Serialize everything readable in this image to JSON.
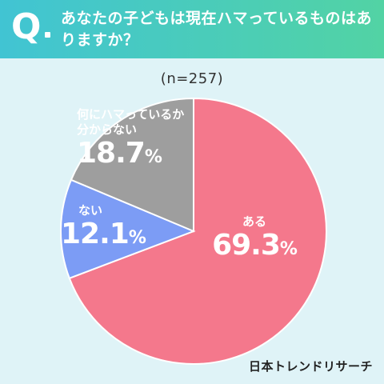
{
  "header": {
    "q_mark": "Q",
    "question": "あなたの子どもは現在ハマっているものはありますか？"
  },
  "sample_label": "(n=257)",
  "chart_data": {
    "type": "pie",
    "slices": [
      {
        "label": "ある",
        "value": 69.3,
        "value_text": "69.3",
        "color": "#f4788c"
      },
      {
        "label": "ない",
        "value": 12.1,
        "value_text": "12.1",
        "color": "#7c9cf5"
      },
      {
        "label": "何にハマっているか分からない",
        "value": 18.7,
        "value_text": "18.7",
        "color": "#9e9e9e"
      }
    ],
    "label_lines": {
      "other_line1": "何にハマっているか",
      "other_line2": "分からない"
    },
    "percent_sign": "%",
    "start_angle": "12 o'clock",
    "direction": "clockwise"
  },
  "brand": "日本トレンドリサーチ"
}
